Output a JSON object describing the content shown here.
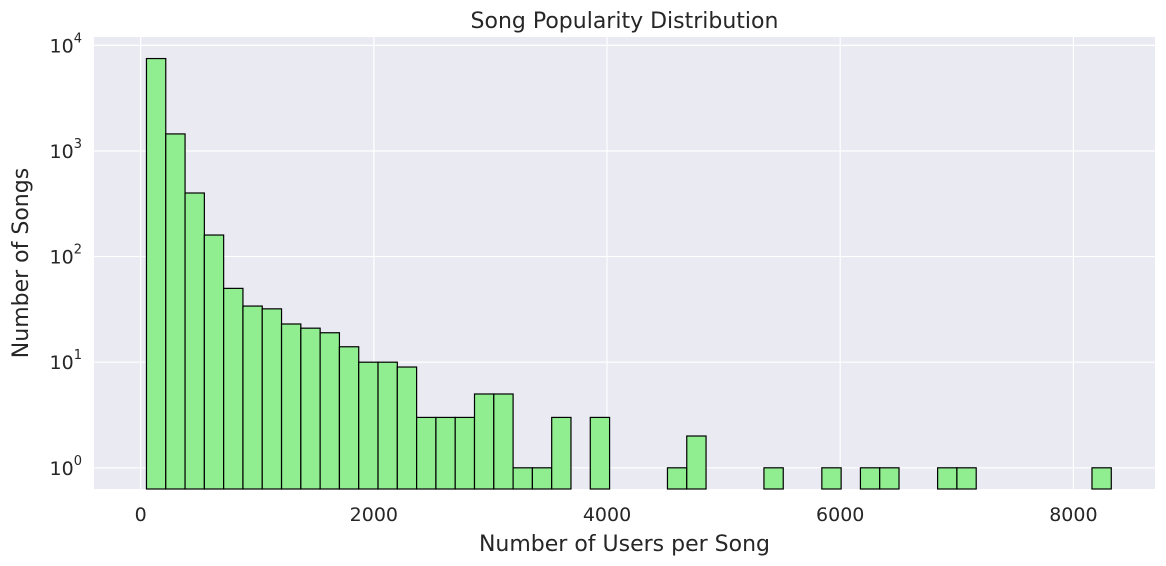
{
  "chart_data": {
    "type": "bar",
    "title": "Song Popularity Distribution",
    "xlabel": "Number of Users per Song",
    "ylabel": "Number of Songs",
    "y_scale": "log",
    "x_ticks": [
      "0",
      "2000",
      "4000",
      "6000",
      "8000"
    ],
    "y_ticks": [
      {
        "base": "10",
        "exp": "0"
      },
      {
        "base": "10",
        "exp": "1"
      },
      {
        "base": "10",
        "exp": "2"
      },
      {
        "base": "10",
        "exp": "3"
      },
      {
        "base": "10",
        "exp": "4"
      }
    ],
    "xlim": [
      -400,
      8700
    ],
    "ylim": [
      0.63,
      12000
    ],
    "grid": true,
    "bar_color": "#90ee90",
    "edge_color": "#000000",
    "background_color": "#eaeaf2",
    "bin_width": 165.5,
    "bins": [
      {
        "x0": 50,
        "count": 7500
      },
      {
        "x0": 215.5,
        "count": 1450
      },
      {
        "x0": 381,
        "count": 400
      },
      {
        "x0": 546.5,
        "count": 160
      },
      {
        "x0": 712,
        "count": 50
      },
      {
        "x0": 877.5,
        "count": 34
      },
      {
        "x0": 1043,
        "count": 32
      },
      {
        "x0": 1208.5,
        "count": 23
      },
      {
        "x0": 1374,
        "count": 21
      },
      {
        "x0": 1539.5,
        "count": 19
      },
      {
        "x0": 1705,
        "count": 14
      },
      {
        "x0": 1870.5,
        "count": 10
      },
      {
        "x0": 2036,
        "count": 10
      },
      {
        "x0": 2201.5,
        "count": 9
      },
      {
        "x0": 2367,
        "count": 3
      },
      {
        "x0": 2532.5,
        "count": 3
      },
      {
        "x0": 2698,
        "count": 3
      },
      {
        "x0": 2863.5,
        "count": 5
      },
      {
        "x0": 3029,
        "count": 5
      },
      {
        "x0": 3194.5,
        "count": 1
      },
      {
        "x0": 3360,
        "count": 1
      },
      {
        "x0": 3525.5,
        "count": 3
      },
      {
        "x0": 3856.5,
        "count": 3
      },
      {
        "x0": 4518.5,
        "count": 1
      },
      {
        "x0": 4684,
        "count": 2
      },
      {
        "x0": 5346,
        "count": 1
      },
      {
        "x0": 5842.5,
        "count": 1
      },
      {
        "x0": 6173.5,
        "count": 1
      },
      {
        "x0": 6339,
        "count": 1
      },
      {
        "x0": 6835.5,
        "count": 1
      },
      {
        "x0": 7001,
        "count": 1
      },
      {
        "x0": 8159.5,
        "count": 1
      }
    ]
  }
}
